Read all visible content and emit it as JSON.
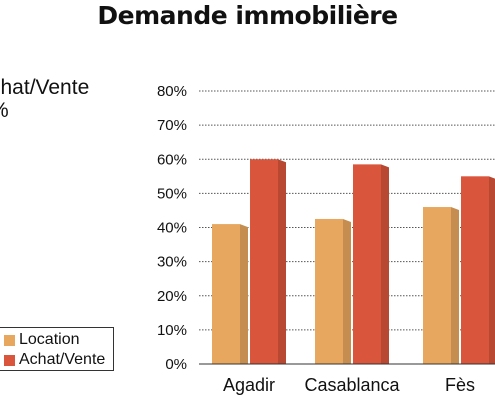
{
  "page": {
    "title": "Demande immobilière",
    "side_label_line1": "chat/Vente",
    "side_label_line2": "%"
  },
  "legend": {
    "items": [
      {
        "label": "Location",
        "color": "#e8a75e"
      },
      {
        "label": "Achat/Vente",
        "color": "#d9553b"
      }
    ]
  },
  "chart_data": {
    "type": "bar",
    "title": "Demande immobilière",
    "categories": [
      "Agadir",
      "Casablanca",
      "Fès"
    ],
    "series": [
      {
        "name": "Location",
        "values": [
          41,
          42.5,
          46
        ],
        "color": "#e8a75e"
      },
      {
        "name": "Achat/Vente",
        "values": [
          60,
          58.5,
          55
        ],
        "color": "#d9553b"
      }
    ],
    "ylim": [
      0,
      80
    ],
    "yticks": [
      "0%",
      "10%",
      "20%",
      "30%",
      "40%",
      "50%",
      "60%",
      "70%",
      "80%"
    ],
    "grid": true,
    "legend_position": "bottom-left"
  }
}
